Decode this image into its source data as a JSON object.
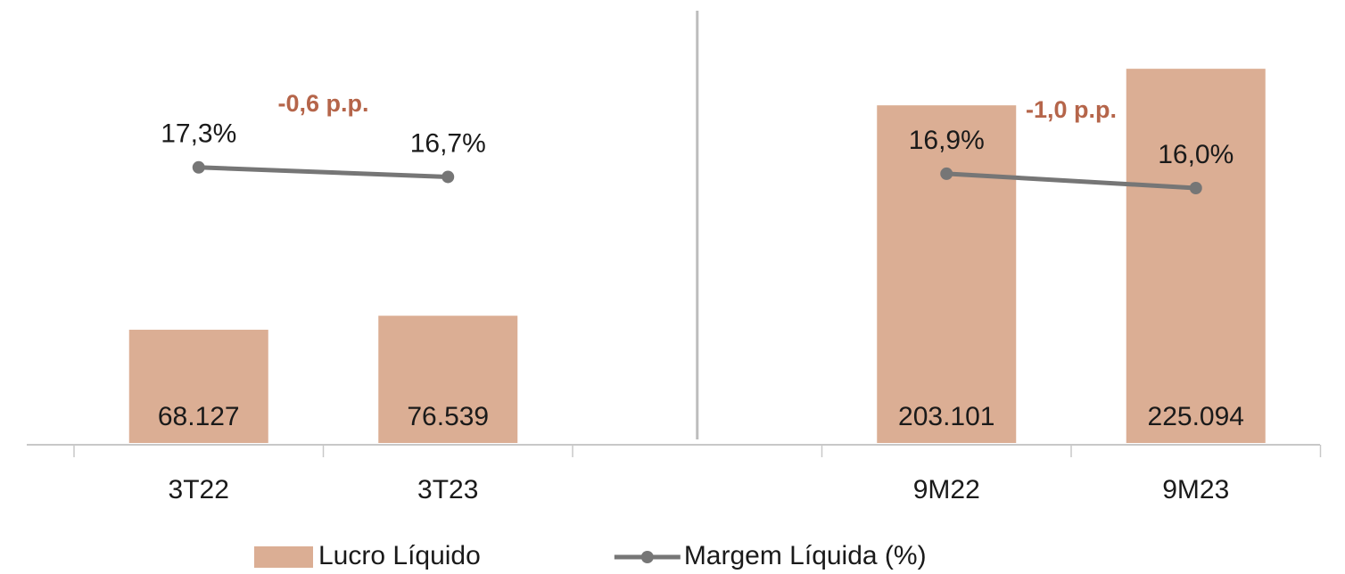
{
  "chart_data": {
    "type": "bar",
    "categories": [
      "3T22",
      "3T23",
      null,
      "9M22",
      "9M23"
    ],
    "series": [
      {
        "name": "Lucro Líquido",
        "type": "bar",
        "color": "#dbae94",
        "values": [
          68127,
          76539,
          null,
          203101,
          225094
        ],
        "value_labels": [
          "68.127",
          "76.539",
          null,
          "203.101",
          "225.094"
        ]
      },
      {
        "name": "Margem Líquida (%)",
        "type": "line",
        "axis": "y2",
        "color": "#767676",
        "values": [
          17.3,
          16.7,
          null,
          16.9,
          16.0
        ],
        "value_labels": [
          "17,3%",
          "16,7%",
          null,
          "16,9%",
          "16,0%"
        ]
      }
    ],
    "annotations": [
      "-0,6 p.p.",
      "-1,0 p.p."
    ],
    "annotation_color": "#b5654a",
    "ylim": [
      0,
      230000
    ],
    "y2lim": [
      0,
      24
    ],
    "legend": "bottom"
  }
}
